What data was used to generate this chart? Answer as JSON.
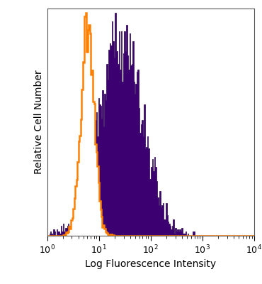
{
  "xlabel": "Log Fluorescence Intensity",
  "ylabel": "Relative Cell Number",
  "background_color": "#ffffff",
  "orange_color": "#FF8000",
  "purple_color": "#3D0070",
  "purple_edge_color": "#2a0050",
  "orange_peak_log": 0.78,
  "orange_sigma_log": 0.13,
  "purple_peak_log": 1.42,
  "purple_sigma_log": 0.42,
  "n_cells": 5000,
  "n_bins": 200,
  "seed": 7
}
